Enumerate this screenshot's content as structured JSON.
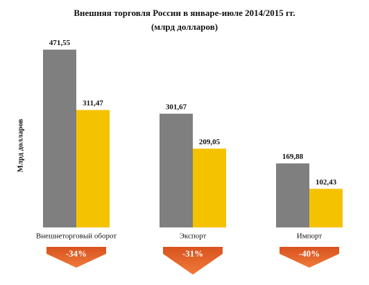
{
  "chart_data": {
    "type": "bar",
    "title": "Внешняя торговля России в январе-июле  2014/2015 гг.",
    "subtitle": "(млрд долларов)",
    "y_label": "Млрд долларов",
    "categories": [
      "Внешнеторговый оборот",
      "Экспорт",
      "Импорт"
    ],
    "series": [
      {
        "color": "#7f7f7f",
        "values": [
          471.55,
          301.67,
          169.88
        ],
        "value_labels": [
          "471,55",
          "301,67",
          "169,88"
        ]
      },
      {
        "color": "#f5c200",
        "values": [
          311.47,
          209.05,
          102.43
        ],
        "value_labels": [
          "311,47",
          "209,05",
          "102,43"
        ]
      }
    ],
    "ylim": [
      0,
      480
    ],
    "grid": false,
    "annotations": [
      "-34%",
      "-31%",
      "-40%"
    ]
  }
}
